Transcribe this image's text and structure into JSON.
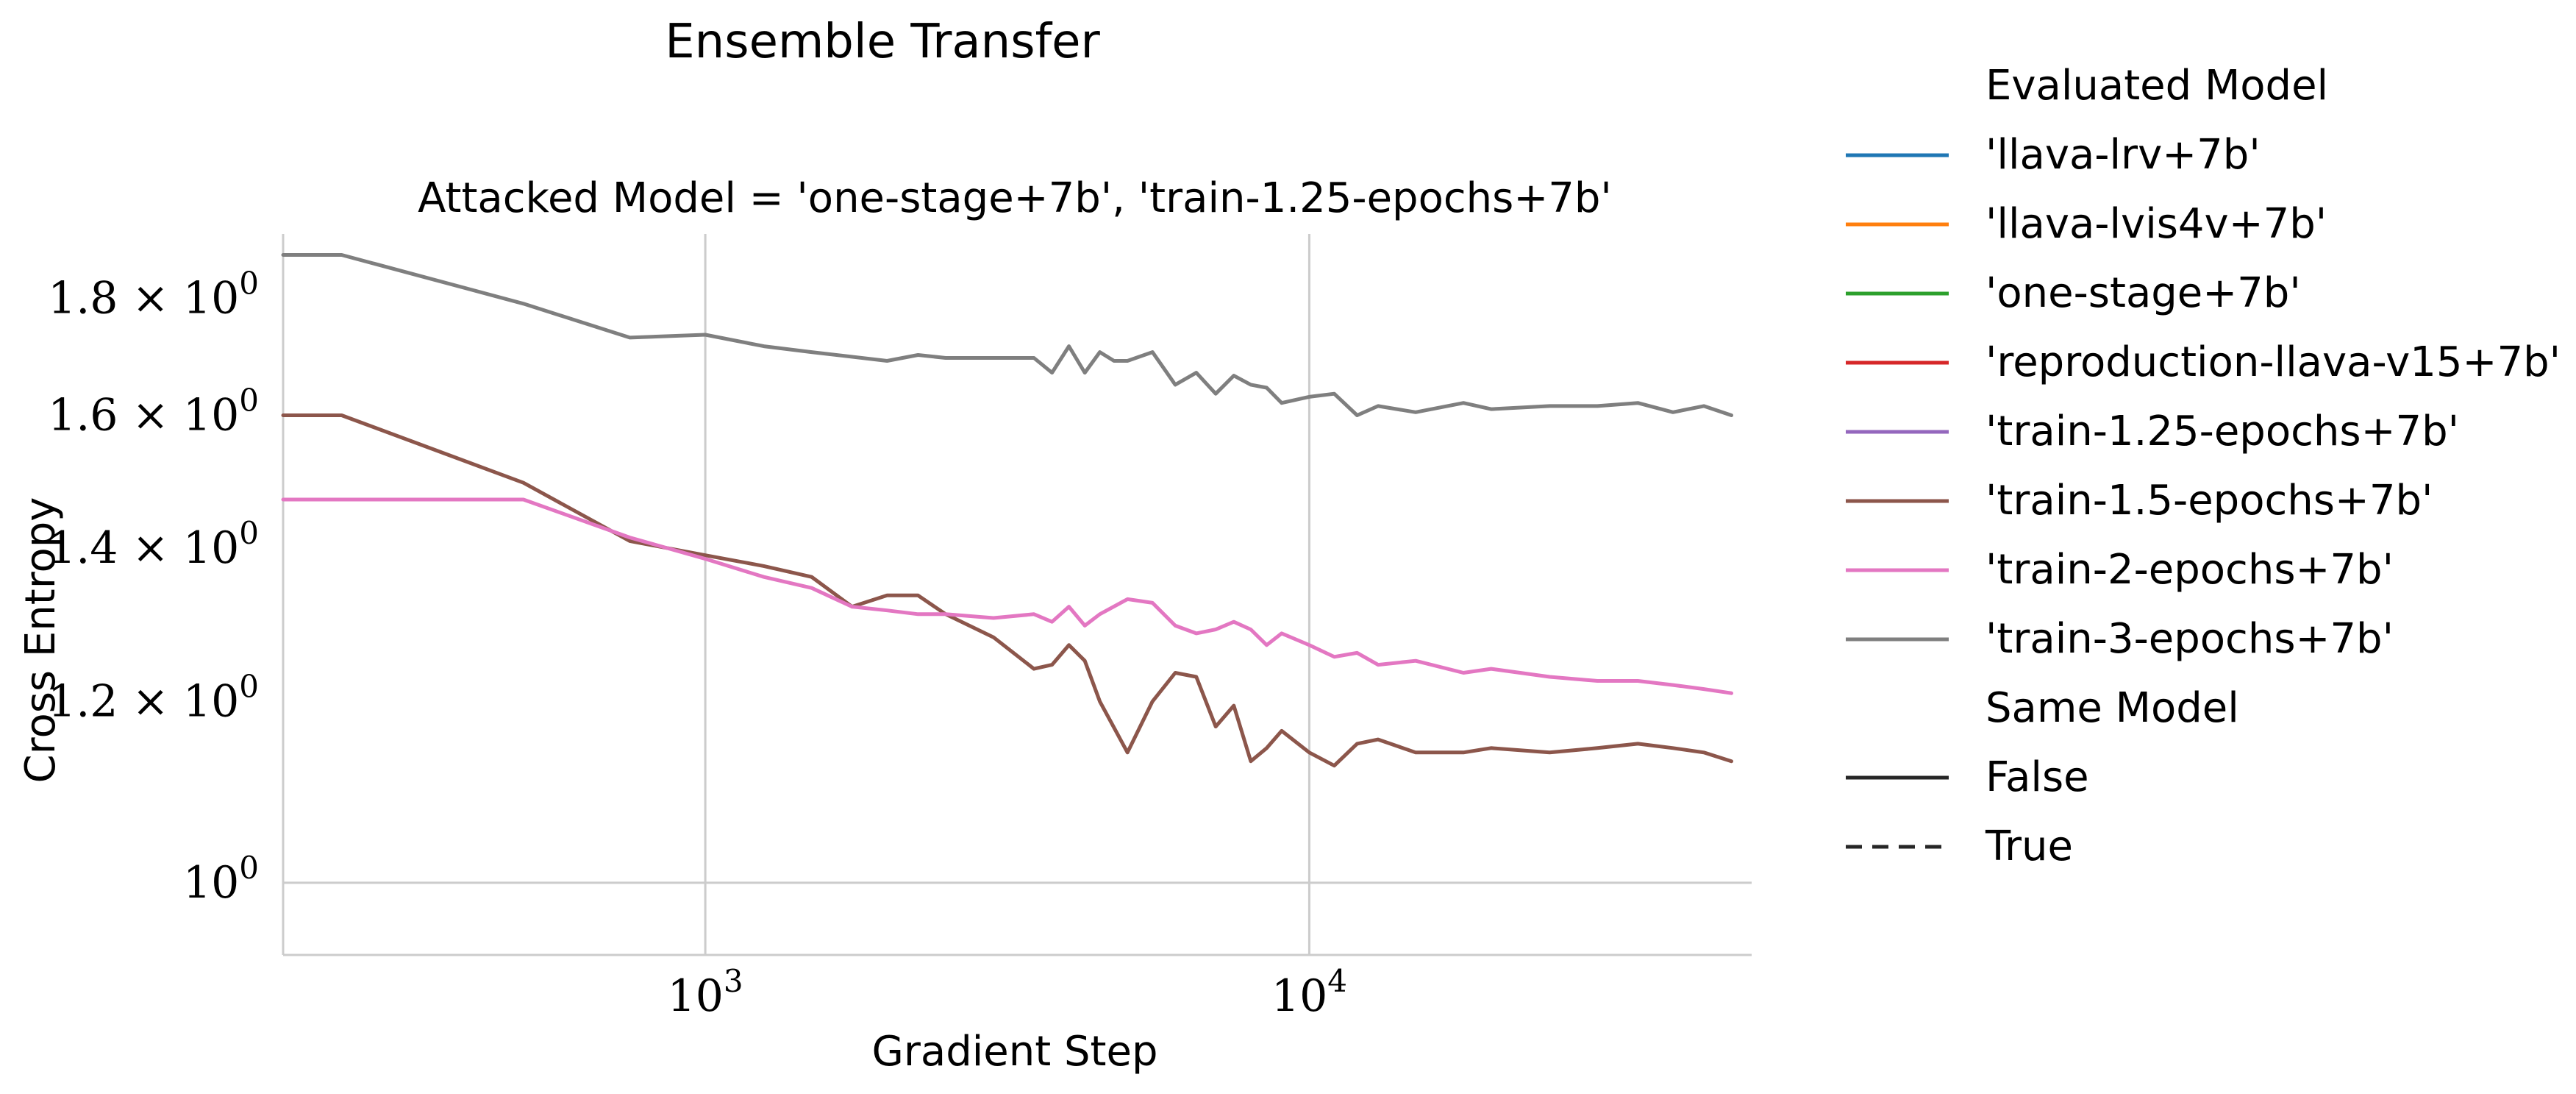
{
  "chart_data": {
    "type": "line",
    "suptitle": "Ensemble Transfer",
    "title": "Attacked Model = 'one-stage+7b', 'train-1.25-epochs+7b'",
    "xlabel": "Gradient Step",
    "ylabel": "Cross Entropy",
    "xscale": "log",
    "yscale": "log",
    "xlim": [
      200,
      54000
    ],
    "ylim": [
      0.93,
      1.92
    ],
    "grid": true,
    "xticks": [
      {
        "value": 1000,
        "base": "10",
        "exp": "3"
      },
      {
        "value": 10000,
        "base": "10",
        "exp": "4"
      }
    ],
    "yticks": [
      {
        "value": 1.0,
        "mant": "",
        "base": "10",
        "exp": "0"
      },
      {
        "value": 1.2,
        "mant": "1.2 × ",
        "base": "10",
        "exp": "0"
      },
      {
        "value": 1.4,
        "mant": "1.4 × ",
        "base": "10",
        "exp": "0"
      },
      {
        "value": 1.6,
        "mant": "1.6 × ",
        "base": "10",
        "exp": "0"
      },
      {
        "value": 1.8,
        "mant": "1.8 × ",
        "base": "10",
        "exp": "0"
      }
    ],
    "legend": {
      "placement": "right, outside",
      "hue_title": "Evaluated Model",
      "hue_items": [
        {
          "label": "'llava-lrv+7b'",
          "color": "#1f77b4"
        },
        {
          "label": "'llava-lvis4v+7b'",
          "color": "#ff7f0e"
        },
        {
          "label": "'one-stage+7b'",
          "color": "#2ca02c"
        },
        {
          "label": "'reproduction-llava-v15+7b'",
          "color": "#d62728"
        },
        {
          "label": "'train-1.25-epochs+7b'",
          "color": "#9467bd"
        },
        {
          "label": "'train-1.5-epochs+7b'",
          "color": "#8c564b"
        },
        {
          "label": "'train-2-epochs+7b'",
          "color": "#e377c2"
        },
        {
          "label": "'train-3-epochs+7b'",
          "color": "#7f7f7f"
        }
      ],
      "style_title": "Same Model",
      "style_items": [
        {
          "label": "False",
          "dash": "solid"
        },
        {
          "label": "True",
          "dash": "dashed"
        }
      ]
    },
    "series": [
      {
        "name": "'train-3-epochs+7b'",
        "color": "#7f7f7f",
        "same_model": "False",
        "x": [
          200,
          250,
          500,
          750,
          1000,
          1250,
          1500,
          2000,
          2250,
          2500,
          3000,
          3500,
          3750,
          4000,
          4250,
          4500,
          4750,
          5000,
          5500,
          6000,
          6500,
          7000,
          7500,
          8000,
          8500,
          9000,
          10000,
          11000,
          12000,
          13000,
          15000,
          18000,
          20000,
          25000,
          30000,
          35000,
          40000,
          45000,
          50000
        ],
        "y": [
          1.88,
          1.88,
          1.79,
          1.73,
          1.735,
          1.715,
          1.705,
          1.69,
          1.7,
          1.695,
          1.695,
          1.695,
          1.67,
          1.715,
          1.67,
          1.705,
          1.69,
          1.69,
          1.705,
          1.65,
          1.67,
          1.635,
          1.665,
          1.65,
          1.645,
          1.62,
          1.63,
          1.635,
          1.6,
          1.615,
          1.605,
          1.62,
          1.61,
          1.615,
          1.615,
          1.62,
          1.605,
          1.615,
          1.6
        ]
      },
      {
        "name": "'train-1.5-epochs+7b'",
        "color": "#8c564b",
        "same_model": "False",
        "x": [
          200,
          250,
          500,
          750,
          1000,
          1250,
          1500,
          1750,
          2000,
          2250,
          2500,
          3000,
          3500,
          3750,
          4000,
          4250,
          4500,
          5000,
          5500,
          6000,
          6500,
          7000,
          7500,
          8000,
          8500,
          9000,
          10000,
          11000,
          12000,
          13000,
          15000,
          18000,
          20000,
          25000,
          30000,
          35000,
          40000,
          45000,
          50000
        ],
        "y": [
          1.6,
          1.6,
          1.495,
          1.41,
          1.39,
          1.375,
          1.36,
          1.32,
          1.335,
          1.335,
          1.31,
          1.28,
          1.24,
          1.245,
          1.27,
          1.25,
          1.2,
          1.14,
          1.2,
          1.235,
          1.23,
          1.17,
          1.195,
          1.13,
          1.145,
          1.165,
          1.14,
          1.125,
          1.15,
          1.155,
          1.14,
          1.14,
          1.145,
          1.14,
          1.145,
          1.15,
          1.145,
          1.14,
          1.13
        ]
      },
      {
        "name": "'train-2-epochs+7b'",
        "color": "#e377c2",
        "same_model": "False",
        "x": [
          200,
          250,
          500,
          750,
          1000,
          1250,
          1500,
          1750,
          2000,
          2250,
          2500,
          3000,
          3500,
          3750,
          4000,
          4250,
          4500,
          5000,
          5500,
          6000,
          6500,
          7000,
          7500,
          8000,
          8500,
          9000,
          10000,
          11000,
          12000,
          13000,
          15000,
          18000,
          20000,
          25000,
          30000,
          35000,
          40000,
          45000,
          50000
        ],
        "y": [
          1.47,
          1.47,
          1.47,
          1.415,
          1.385,
          1.36,
          1.345,
          1.32,
          1.315,
          1.31,
          1.31,
          1.305,
          1.31,
          1.3,
          1.32,
          1.295,
          1.31,
          1.33,
          1.325,
          1.295,
          1.285,
          1.29,
          1.3,
          1.29,
          1.27,
          1.285,
          1.27,
          1.255,
          1.26,
          1.245,
          1.25,
          1.235,
          1.24,
          1.23,
          1.225,
          1.225,
          1.22,
          1.215,
          1.21
        ]
      }
    ]
  }
}
